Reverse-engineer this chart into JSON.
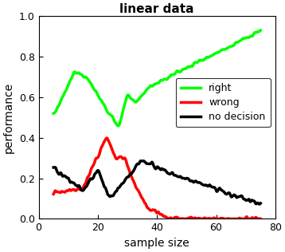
{
  "title": "linear data",
  "xlabel": "sample size",
  "ylabel": "performance",
  "xlim": [
    0,
    80
  ],
  "ylim": [
    0,
    1
  ],
  "xticks": [
    0,
    20,
    40,
    60,
    80
  ],
  "yticks": [
    0,
    0.2,
    0.4,
    0.6,
    0.8,
    1.0
  ],
  "legend_labels": [
    "right",
    "wrong",
    "no decision"
  ],
  "line_colors": [
    "#00ff00",
    "#ff0000",
    "#000000"
  ],
  "line_width": 2.5,
  "bg_color": "#ffffff",
  "title_fontsize": 11,
  "label_fontsize": 10,
  "tick_fontsize": 9,
  "legend_fontsize": 9
}
